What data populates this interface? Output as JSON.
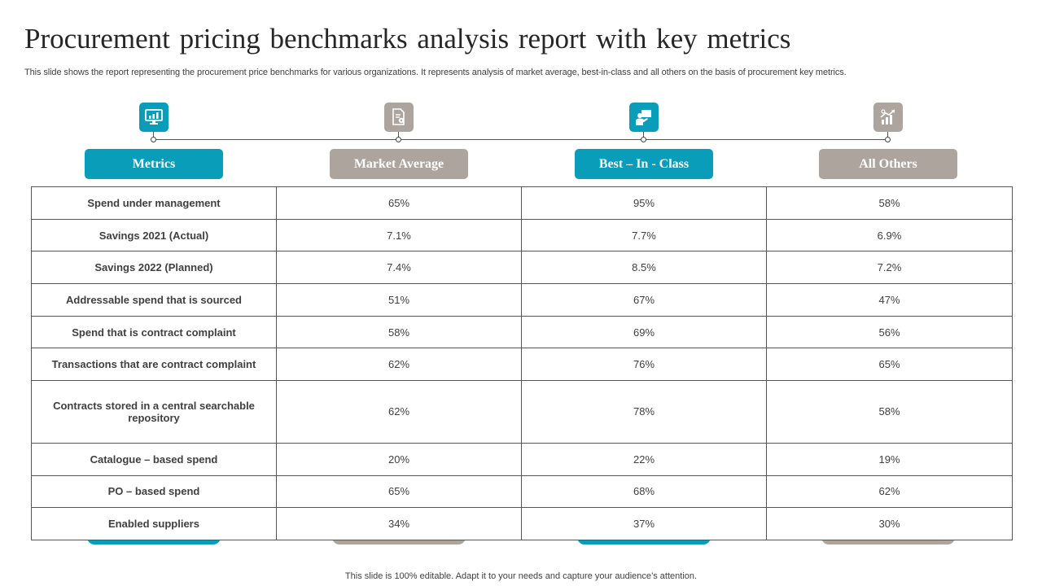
{
  "slide": {
    "title": "Procurement pricing benchmarks analysis report with key metrics",
    "subtitle": "This slide shows the report representing the procurement price benchmarks for various organizations. It represents analysis of market average, best-in-class and all others on the basis of procurement key metrics.",
    "footer": "This slide is 100% editable. Adapt it to your needs and capture your audience’s attention."
  },
  "columns": [
    {
      "label": "Metrics",
      "icon": "monitor-chart-icon",
      "color": "#0a9dba"
    },
    {
      "label": "Market Average",
      "icon": "document-gear-icon",
      "color": "#ada49d"
    },
    {
      "label": "Best – In - Class",
      "icon": "presenter-board-icon",
      "color": "#0a9dba"
    },
    {
      "label": "All Others",
      "icon": "growth-chart-icon",
      "color": "#ada49d"
    }
  ],
  "table": {
    "rows": [
      {
        "metric": "Spend under management",
        "market_average": "65%",
        "best_in_class": "95%",
        "all_others": "58%"
      },
      {
        "metric": "Savings 2021 (Actual)",
        "market_average": "7.1%",
        "best_in_class": "7.7%",
        "all_others": "6.9%"
      },
      {
        "metric": "Savings 2022 (Planned)",
        "market_average": "7.4%",
        "best_in_class": "8.5%",
        "all_others": "7.2%"
      },
      {
        "metric": "Addressable spend that is sourced",
        "market_average": "51%",
        "best_in_class": "67%",
        "all_others": "47%"
      },
      {
        "metric": "Spend that is contract complaint",
        "market_average": "58%",
        "best_in_class": "69%",
        "all_others": "56%"
      },
      {
        "metric": "Transactions that are contract complaint",
        "market_average": "62%",
        "best_in_class": "76%",
        "all_others": "65%"
      },
      {
        "metric": "Contracts  stored  in a central searchable repository",
        "market_average": "62%",
        "best_in_class": "78%",
        "all_others": "58%"
      },
      {
        "metric": "Catalogue – based spend",
        "market_average": "20%",
        "best_in_class": "22%",
        "all_others": "19%"
      },
      {
        "metric": "PO – based spend",
        "market_average": "65%",
        "best_in_class": "68%",
        "all_others": "62%"
      },
      {
        "metric": "Enabled suppliers",
        "market_average": "34%",
        "best_in_class": "37%",
        "all_others": "30%"
      }
    ]
  }
}
